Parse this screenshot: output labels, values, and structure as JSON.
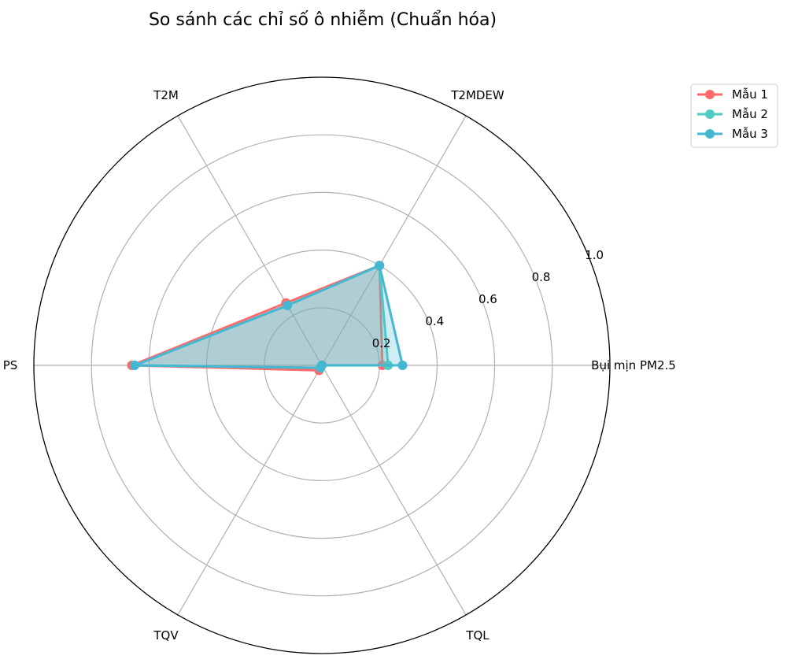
{
  "chart_data": {
    "type": "radar",
    "title": "So sánh các chỉ số ô nhiễm (Chuẩn hóa)",
    "categories": [
      "Bụi mịn PM2.5",
      "T2MDEW",
      "T2M",
      "PS",
      "TQV",
      "TQL"
    ],
    "radial_ticks": [
      0.2,
      0.4,
      0.6,
      0.8,
      1.0
    ],
    "radial_tick_labels": [
      "0.2",
      "0.4",
      "0.6",
      "0.8",
      "1.0"
    ],
    "rlim": [
      0,
      1.0
    ],
    "grid": true,
    "legend_position": "top-right",
    "series": [
      {
        "name": "Mẫu 1",
        "values": [
          0.21,
          0.4,
          0.25,
          0.66,
          0.02,
          0.0
        ],
        "color": "#ff6b6b"
      },
      {
        "name": "Mẫu 2",
        "values": [
          0.23,
          0.4,
          0.24,
          0.65,
          0.01,
          0.0
        ],
        "color": "#4ecdc4"
      },
      {
        "name": "Mẫu 3",
        "values": [
          0.28,
          0.4,
          0.24,
          0.65,
          0.01,
          0.0
        ],
        "color": "#45b7d1"
      }
    ]
  }
}
